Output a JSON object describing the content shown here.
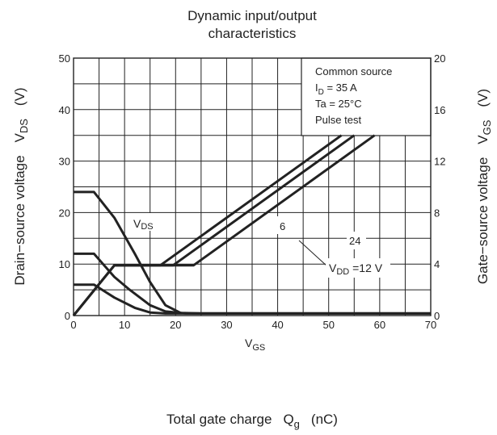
{
  "chart_data": {
    "type": "line",
    "title_lines": [
      "Dynamic input/output",
      "characteristics"
    ],
    "xlabel": "Total gate charge",
    "xlabel_symbol": "Q",
    "xlabel_sub": "g",
    "xlabel_unit": "(nC)",
    "ylabel_left": "Drain−source voltage",
    "ylabel_left_symbol": "V",
    "ylabel_left_sub": "DS",
    "ylabel_left_unit": "(V)",
    "ylabel_right": "Gate−source voltage",
    "ylabel_right_symbol": "V",
    "ylabel_right_sub": "GS",
    "ylabel_right_unit": "(V)",
    "xlim": [
      0,
      70
    ],
    "ylim_left": [
      0,
      50
    ],
    "ylim_right": [
      0,
      20
    ],
    "x_ticks": [
      "0",
      "10",
      "20",
      "30",
      "40",
      "50",
      "60",
      "70"
    ],
    "y_left_ticks": [
      "0",
      "10",
      "20",
      "30",
      "40",
      "50"
    ],
    "y_right_ticks": [
      "0",
      "4",
      "8",
      "12",
      "16",
      "20"
    ],
    "grid": true,
    "conditions_box": {
      "lines": [
        {
          "text": "Common source"
        },
        {
          "text": "I",
          "sub": "D",
          "rest": " = 35 A"
        },
        {
          "text": "Ta = 25°C"
        },
        {
          "text": "Pulse test"
        }
      ]
    },
    "labels": {
      "vds": {
        "main": "V",
        "sub": "DS"
      },
      "vgs": {
        "main": "V",
        "sub": "GS"
      },
      "vdd": {
        "main": "V",
        "sub": "DD",
        "rest": " =12 V"
      },
      "six": "6",
      "twentyfour": "24"
    },
    "series": [
      {
        "axis": "left",
        "points": [
          [
            0,
            24
          ],
          [
            4,
            24
          ],
          [
            8,
            19
          ],
          [
            12,
            12
          ],
          [
            15,
            6.5
          ],
          [
            18,
            2
          ],
          [
            21,
            0.5
          ],
          [
            25,
            0.4
          ],
          [
            70,
            0.4
          ]
        ]
      },
      {
        "axis": "left",
        "points": [
          [
            0,
            12
          ],
          [
            4,
            12
          ],
          [
            8,
            7.5
          ],
          [
            11,
            5
          ],
          [
            15,
            2
          ],
          [
            18,
            0.8
          ],
          [
            22,
            0.4
          ],
          [
            70,
            0.4
          ]
        ]
      },
      {
        "axis": "left",
        "points": [
          [
            0,
            6
          ],
          [
            4,
            6
          ],
          [
            8,
            3.5
          ],
          [
            12,
            1.5
          ],
          [
            15,
            0.6
          ],
          [
            18,
            0.4
          ],
          [
            70,
            0.4
          ]
        ]
      },
      {
        "axis": "right",
        "points": [
          [
            0,
            0
          ],
          [
            8,
            3.9
          ],
          [
            17,
            3.9
          ],
          [
            52.5,
            14
          ]
        ]
      },
      {
        "axis": "right",
        "points": [
          [
            0,
            0
          ],
          [
            8,
            3.9
          ],
          [
            19.5,
            3.9
          ],
          [
            55,
            14
          ]
        ]
      },
      {
        "axis": "right",
        "points": [
          [
            0,
            0
          ],
          [
            8,
            3.9
          ],
          [
            23.5,
            3.9
          ],
          [
            59,
            14
          ]
        ]
      }
    ]
  }
}
